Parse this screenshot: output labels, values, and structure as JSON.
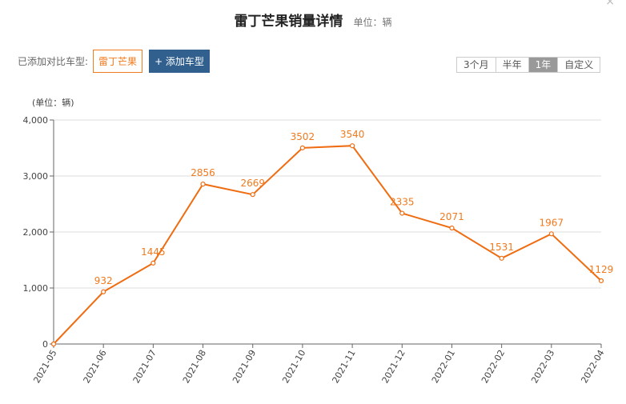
{
  "header": {
    "title": "雷丁芒果销量详情",
    "unit": "单位：辆",
    "close": "×"
  },
  "compare": {
    "label": "已添加对比车型:",
    "model": "雷丁芒果",
    "add_label": "+ 添加车型"
  },
  "ranges": [
    {
      "label": "3个月",
      "active": false
    },
    {
      "label": "半年",
      "active": false
    },
    {
      "label": "1年",
      "active": true
    },
    {
      "label": "自定义",
      "active": false
    }
  ],
  "colors": {
    "line": "#ef6c11",
    "label": "#f07a1e"
  },
  "chart_data": {
    "type": "line",
    "unit_label": "(单位：辆)",
    "categories": [
      "2021-05",
      "2021-06",
      "2021-07",
      "2021-08",
      "2021-09",
      "2021-10",
      "2021-11",
      "2021-12",
      "2022-01",
      "2022-02",
      "2022-03",
      "2022-04"
    ],
    "values": [
      0,
      932,
      1445,
      2856,
      2669,
      3502,
      3540,
      2335,
      2071,
      1531,
      1967,
      1129
    ],
    "data_labels": [
      "",
      "932",
      "1445",
      "2856",
      "2669",
      "3502",
      "3540",
      "2335",
      "2071",
      "1531",
      "1967",
      "1129"
    ],
    "yticks": [
      "0",
      "1,000",
      "2,000",
      "3,000",
      "4,000"
    ],
    "ylim": [
      0,
      4000
    ],
    "grid": true,
    "legend": "none"
  }
}
